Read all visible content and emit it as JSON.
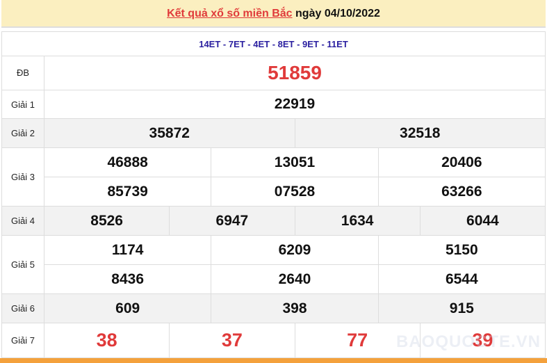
{
  "header": {
    "title_link": "Kết quả xổ số miền Bắc",
    "date_text": "ngày 04/10/2022"
  },
  "codes": "14ET - 7ET - 4ET - 8ET - 9ET - 11ET",
  "prizes": {
    "db": {
      "label": "ĐB",
      "values": [
        "51859"
      ]
    },
    "g1": {
      "label": "Giải 1",
      "values": [
        "22919"
      ]
    },
    "g2": {
      "label": "Giải 2",
      "values": [
        "35872",
        "32518"
      ]
    },
    "g3": {
      "label": "Giải 3",
      "values": [
        "46888",
        "13051",
        "20406",
        "85739",
        "07528",
        "63266"
      ]
    },
    "g4": {
      "label": "Giải 4",
      "values": [
        "8526",
        "6947",
        "1634",
        "6044"
      ]
    },
    "g5": {
      "label": "Giải 5",
      "values": [
        "1174",
        "6209",
        "5150",
        "8436",
        "2640",
        "6544"
      ]
    },
    "g6": {
      "label": "Giải 6",
      "values": [
        "609",
        "398",
        "915"
      ]
    },
    "g7": {
      "label": "Giải 7",
      "values": [
        "38",
        "37",
        "77",
        "39"
      ]
    }
  },
  "watermark": "BAOQUOCTE.VN",
  "colors": {
    "accent_red": "#e03a3a",
    "codes_blue": "#2a1fa0",
    "header_bg": "#fbefc0",
    "bottom_bar": "#f4a13c"
  }
}
